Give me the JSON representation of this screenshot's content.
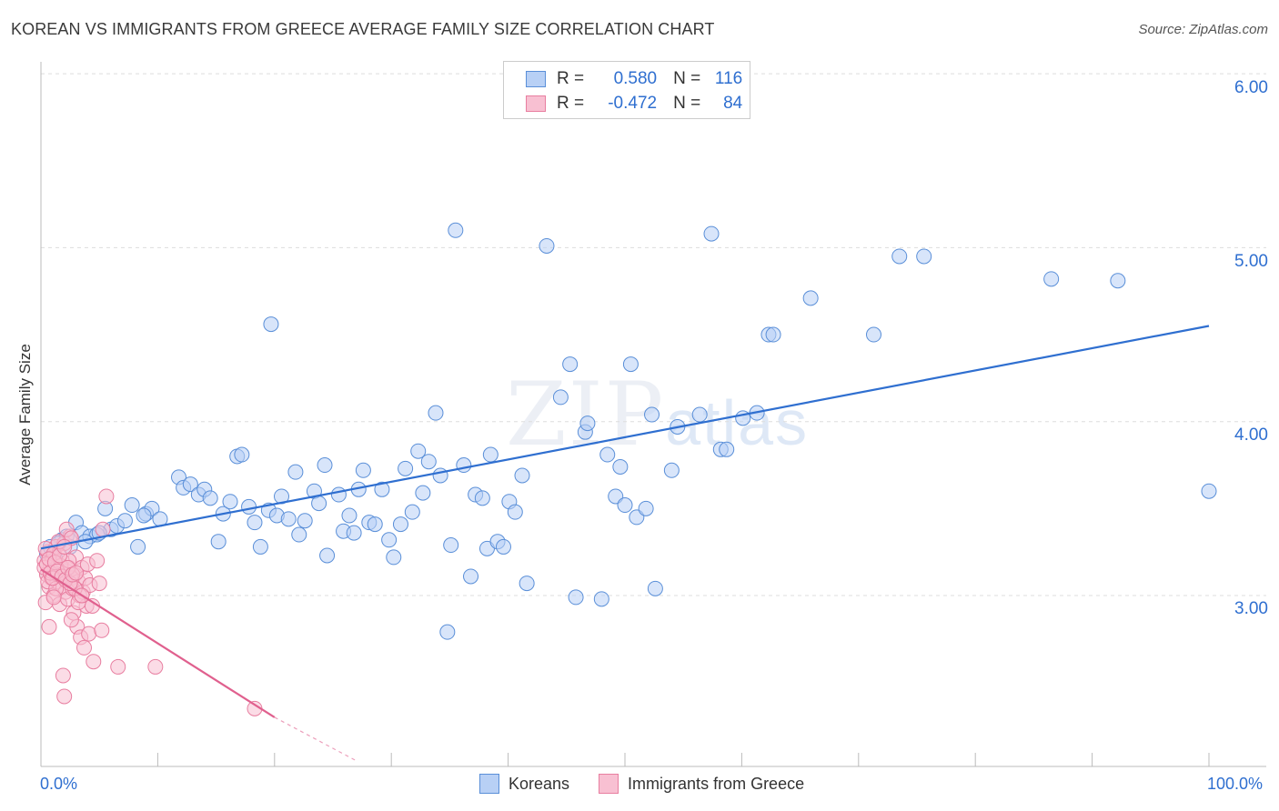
{
  "title": "KOREAN VS IMMIGRANTS FROM GREECE AVERAGE FAMILY SIZE CORRELATION CHART",
  "source": "Source: ZipAtlas.com",
  "watermark": {
    "zip": "ZIP",
    "atlas": "atlas"
  },
  "legend_top": [
    {
      "r_label": "R =",
      "r_value": "0.580",
      "n_label": "N =",
      "n_value": "116"
    },
    {
      "r_label": "R =",
      "r_value": "-0.472",
      "n_label": "N =",
      "n_value": "84"
    }
  ],
  "colors": {
    "koreans_fill": "#b8d0f5",
    "koreans_stroke": "#5a8fd8",
    "koreans_line": "#2f6fd0",
    "greece_fill": "#f8c0d2",
    "greece_stroke": "#e87ea0",
    "greece_line": "#e0608e",
    "tick_text": "#2f6fd0",
    "grid": "#dddddd"
  },
  "chart_data": {
    "type": "scatter",
    "title": "KOREAN VS IMMIGRANTS FROM GREECE AVERAGE FAMILY SIZE CORRELATION CHART",
    "xlabel": "",
    "ylabel": "Average Family Size",
    "xlim": [
      0,
      100
    ],
    "ylim": [
      2.05,
      6.1
    ],
    "x_tick_labels": [
      "0.0%",
      "100.0%"
    ],
    "y_ticks": [
      3.0,
      4.0,
      5.0,
      6.0
    ],
    "y_tick_labels": [
      "3.00",
      "4.00",
      "5.00",
      "6.00"
    ],
    "grid": "horizontal dashed",
    "legend_placement": "bottom-center",
    "series": [
      {
        "name": "Koreans",
        "trend": {
          "x": [
            0,
            100
          ],
          "y": [
            3.27,
            4.55
          ]
        },
        "points": [
          [
            0.5,
            3.24
          ],
          [
            0.8,
            3.28
          ],
          [
            1.2,
            3.22
          ],
          [
            1.8,
            3.32
          ],
          [
            2.2,
            3.34
          ],
          [
            2.5,
            3.28
          ],
          [
            3,
            3.42
          ],
          [
            3.5,
            3.36
          ],
          [
            4.2,
            3.34
          ],
          [
            4.8,
            3.35
          ],
          [
            5.5,
            3.5
          ],
          [
            6,
            3.38
          ],
          [
            6.5,
            3.4
          ],
          [
            7.2,
            3.43
          ],
          [
            7.8,
            3.52
          ],
          [
            8.3,
            3.28
          ],
          [
            9,
            3.47
          ],
          [
            9.5,
            3.5
          ],
          [
            10.2,
            3.44
          ],
          [
            11.8,
            3.68
          ],
          [
            12.2,
            3.62
          ],
          [
            12.8,
            3.64
          ],
          [
            13.5,
            3.58
          ],
          [
            14,
            3.61
          ],
          [
            14.5,
            3.56
          ],
          [
            15.2,
            3.31
          ],
          [
            15.6,
            3.47
          ],
          [
            16.2,
            3.54
          ],
          [
            16.8,
            3.8
          ],
          [
            17.2,
            3.81
          ],
          [
            17.8,
            3.51
          ],
          [
            18.3,
            3.42
          ],
          [
            18.8,
            3.28
          ],
          [
            19.5,
            3.49
          ],
          [
            19.7,
            4.56
          ],
          [
            20.2,
            3.46
          ],
          [
            20.6,
            3.57
          ],
          [
            21.2,
            3.44
          ],
          [
            21.8,
            3.71
          ],
          [
            22.1,
            3.35
          ],
          [
            22.6,
            3.43
          ],
          [
            23.4,
            3.6
          ],
          [
            23.8,
            3.53
          ],
          [
            24.3,
            3.75
          ],
          [
            24.5,
            3.23
          ],
          [
            25.5,
            3.58
          ],
          [
            25.9,
            3.37
          ],
          [
            26.4,
            3.46
          ],
          [
            26.8,
            3.36
          ],
          [
            27.2,
            3.61
          ],
          [
            27.6,
            3.72
          ],
          [
            28.1,
            3.42
          ],
          [
            28.6,
            3.41
          ],
          [
            29.2,
            3.61
          ],
          [
            29.8,
            3.32
          ],
          [
            30.2,
            3.22
          ],
          [
            30.8,
            3.41
          ],
          [
            31.2,
            3.73
          ],
          [
            31.8,
            3.48
          ],
          [
            32.3,
            3.83
          ],
          [
            32.7,
            3.59
          ],
          [
            33.2,
            3.77
          ],
          [
            33.8,
            4.05
          ],
          [
            34.2,
            3.69
          ],
          [
            34.8,
            2.79
          ],
          [
            35.1,
            3.29
          ],
          [
            35.5,
            5.1
          ],
          [
            36.2,
            3.75
          ],
          [
            36.8,
            3.11
          ],
          [
            37.2,
            3.58
          ],
          [
            37.8,
            3.56
          ],
          [
            38.2,
            3.27
          ],
          [
            38.5,
            3.81
          ],
          [
            39.1,
            3.31
          ],
          [
            39.6,
            3.28
          ],
          [
            40.1,
            3.54
          ],
          [
            40.6,
            3.48
          ],
          [
            41.2,
            3.69
          ],
          [
            41.6,
            3.07
          ],
          [
            43.3,
            5.01
          ],
          [
            44.5,
            4.14
          ],
          [
            45.3,
            4.33
          ],
          [
            45.8,
            2.99
          ],
          [
            46.6,
            3.94
          ],
          [
            46.8,
            3.99
          ],
          [
            48.0,
            2.98
          ],
          [
            48.5,
            3.81
          ],
          [
            49.2,
            3.57
          ],
          [
            49.6,
            3.74
          ],
          [
            50.0,
            3.52
          ],
          [
            50.5,
            4.33
          ],
          [
            51.0,
            3.45
          ],
          [
            51.8,
            3.5
          ],
          [
            52.6,
            3.04
          ],
          [
            52.3,
            4.04
          ],
          [
            54.0,
            3.72
          ],
          [
            54.5,
            3.97
          ],
          [
            56.4,
            4.04
          ],
          [
            57.4,
            5.08
          ],
          [
            58.2,
            3.84
          ],
          [
            58.7,
            3.84
          ],
          [
            60.1,
            4.02
          ],
          [
            61.3,
            4.05
          ],
          [
            62.3,
            4.5
          ],
          [
            62.7,
            4.5
          ],
          [
            65.9,
            4.71
          ],
          [
            71.3,
            4.5
          ],
          [
            73.5,
            4.95
          ],
          [
            75.6,
            4.95
          ],
          [
            86.5,
            4.82
          ],
          [
            92.2,
            4.81
          ],
          [
            100,
            3.6
          ],
          [
            1.5,
            3.3
          ],
          [
            3.8,
            3.31
          ],
          [
            5.0,
            3.36
          ],
          [
            8.8,
            3.46
          ]
        ]
      },
      {
        "name": "Immigrants from Greece",
        "trend": {
          "x": [
            0,
            20
          ],
          "y": [
            3.15,
            2.3
          ]
        },
        "trend_dashed": {
          "x": [
            20,
            27
          ],
          "y": [
            2.3,
            2.05
          ]
        },
        "points": [
          [
            0.3,
            3.2
          ],
          [
            0.5,
            3.12
          ],
          [
            0.6,
            3.25
          ],
          [
            0.7,
            3.05
          ],
          [
            0.8,
            3.18
          ],
          [
            0.9,
            3.1
          ],
          [
            1.0,
            3.22
          ],
          [
            1.1,
            3.0
          ],
          [
            1.2,
            3.15
          ],
          [
            1.3,
            3.28
          ],
          [
            1.4,
            3.08
          ],
          [
            1.5,
            3.18
          ],
          [
            1.6,
            2.95
          ],
          [
            1.7,
            3.12
          ],
          [
            1.8,
            3.2
          ],
          [
            1.9,
            3.05
          ],
          [
            2.0,
            3.3
          ],
          [
            2.1,
            3.02
          ],
          [
            2.2,
            3.14
          ],
          [
            2.3,
            2.98
          ],
          [
            2.4,
            3.16
          ],
          [
            2.5,
            3.34
          ],
          [
            2.6,
            3.1
          ],
          [
            2.7,
            3.04
          ],
          [
            2.8,
            2.9
          ],
          [
            2.9,
            3.12
          ],
          [
            3.0,
            3.22
          ],
          [
            3.1,
            2.82
          ],
          [
            3.2,
            3.08
          ],
          [
            3.3,
            3.0
          ],
          [
            3.4,
            2.76
          ],
          [
            3.5,
            3.16
          ],
          [
            3.6,
            3.02
          ],
          [
            3.7,
            2.7
          ],
          [
            3.8,
            3.1
          ],
          [
            3.9,
            2.94
          ],
          [
            4.0,
            3.18
          ],
          [
            4.1,
            2.78
          ],
          [
            4.2,
            3.06
          ],
          [
            4.5,
            2.62
          ],
          [
            4.8,
            3.2
          ],
          [
            5.0,
            3.07
          ],
          [
            5.2,
            2.8
          ],
          [
            5.6,
            3.57
          ],
          [
            6.6,
            2.59
          ],
          [
            9.8,
            2.59
          ],
          [
            18.3,
            2.35
          ],
          [
            0.4,
            3.27
          ],
          [
            0.6,
            3.08
          ],
          [
            0.9,
            3.14
          ],
          [
            1.1,
            3.24
          ],
          [
            1.3,
            3.04
          ],
          [
            1.5,
            3.12
          ],
          [
            1.7,
            3.17
          ],
          [
            1.9,
            2.54
          ],
          [
            2.0,
            2.42
          ],
          [
            2.2,
            3.38
          ],
          [
            2.4,
            3.2
          ],
          [
            2.6,
            3.33
          ],
          [
            2.9,
            3.04
          ],
          [
            3.2,
            2.96
          ],
          [
            3.5,
            3.0
          ],
          [
            0.3,
            3.16
          ],
          [
            0.5,
            3.18
          ],
          [
            0.7,
            3.21
          ],
          [
            0.8,
            3.13
          ],
          [
            1.0,
            3.1
          ],
          [
            1.2,
            3.19
          ],
          [
            1.4,
            3.14
          ],
          [
            1.6,
            3.23
          ],
          [
            1.8,
            3.11
          ],
          [
            2.1,
            3.09
          ],
          [
            2.3,
            3.16
          ],
          [
            2.5,
            3.07
          ],
          [
            2.7,
            3.12
          ],
          [
            3.0,
            3.13
          ],
          [
            0.4,
            2.96
          ],
          [
            0.7,
            2.82
          ],
          [
            1.1,
            2.99
          ],
          [
            1.5,
            3.31
          ],
          [
            2.0,
            3.28
          ],
          [
            2.6,
            2.86
          ],
          [
            4.4,
            2.94
          ],
          [
            5.3,
            3.38
          ]
        ]
      }
    ]
  },
  "bottom_legend": [
    {
      "label": "Koreans"
    },
    {
      "label": "Immigrants from Greece"
    }
  ]
}
